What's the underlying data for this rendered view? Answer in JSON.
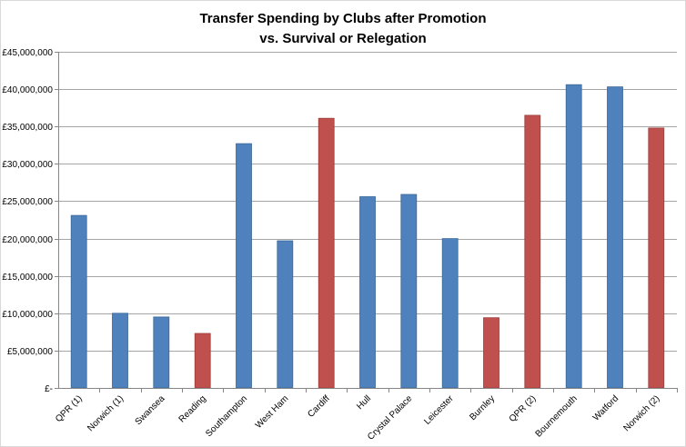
{
  "chart_data": {
    "type": "bar",
    "title_lines": [
      "Transfer Spending by Clubs after Promotion",
      "vs. Survival or Relegation"
    ],
    "categories": [
      "QPR (1)",
      "Norwich (1)",
      "Swansea",
      "Reading",
      "Southampton",
      "West Ham",
      "Cardiff",
      "Hull",
      "Crystal Palace",
      "Leicester",
      "Burnley",
      "QPR (2)",
      "Bournemouth",
      "Watford",
      "Norwich (2)"
    ],
    "values": [
      23100000,
      10000000,
      9500000,
      7300000,
      32700000,
      19700000,
      36100000,
      25600000,
      25900000,
      20000000,
      9400000,
      36500000,
      40600000,
      40300000,
      34800000
    ],
    "relegated": [
      false,
      false,
      false,
      true,
      false,
      false,
      true,
      false,
      false,
      false,
      true,
      true,
      false,
      false,
      true
    ],
    "ylim": [
      0,
      45000000
    ],
    "yticks": [
      0,
      5000000,
      10000000,
      15000000,
      20000000,
      25000000,
      30000000,
      35000000,
      40000000,
      45000000
    ],
    "ytick_labels": [
      "£-",
      "£5,000,000",
      "£10,000,000",
      "£15,000,000",
      "£20,000,000",
      "£25,000,000",
      "£30,000,000",
      "£35,000,000",
      "£40,000,000",
      "£45,000,000"
    ],
    "xlabel": "",
    "ylabel": "",
    "grid": true,
    "legend": "none",
    "colors": {
      "survived": "#4f81bd",
      "survived_edge": "#3a6797",
      "relegated": "#c0504d",
      "relegated_edge": "#9c3d3a",
      "grid": "#a6a6a6",
      "axis": "#868686"
    }
  }
}
